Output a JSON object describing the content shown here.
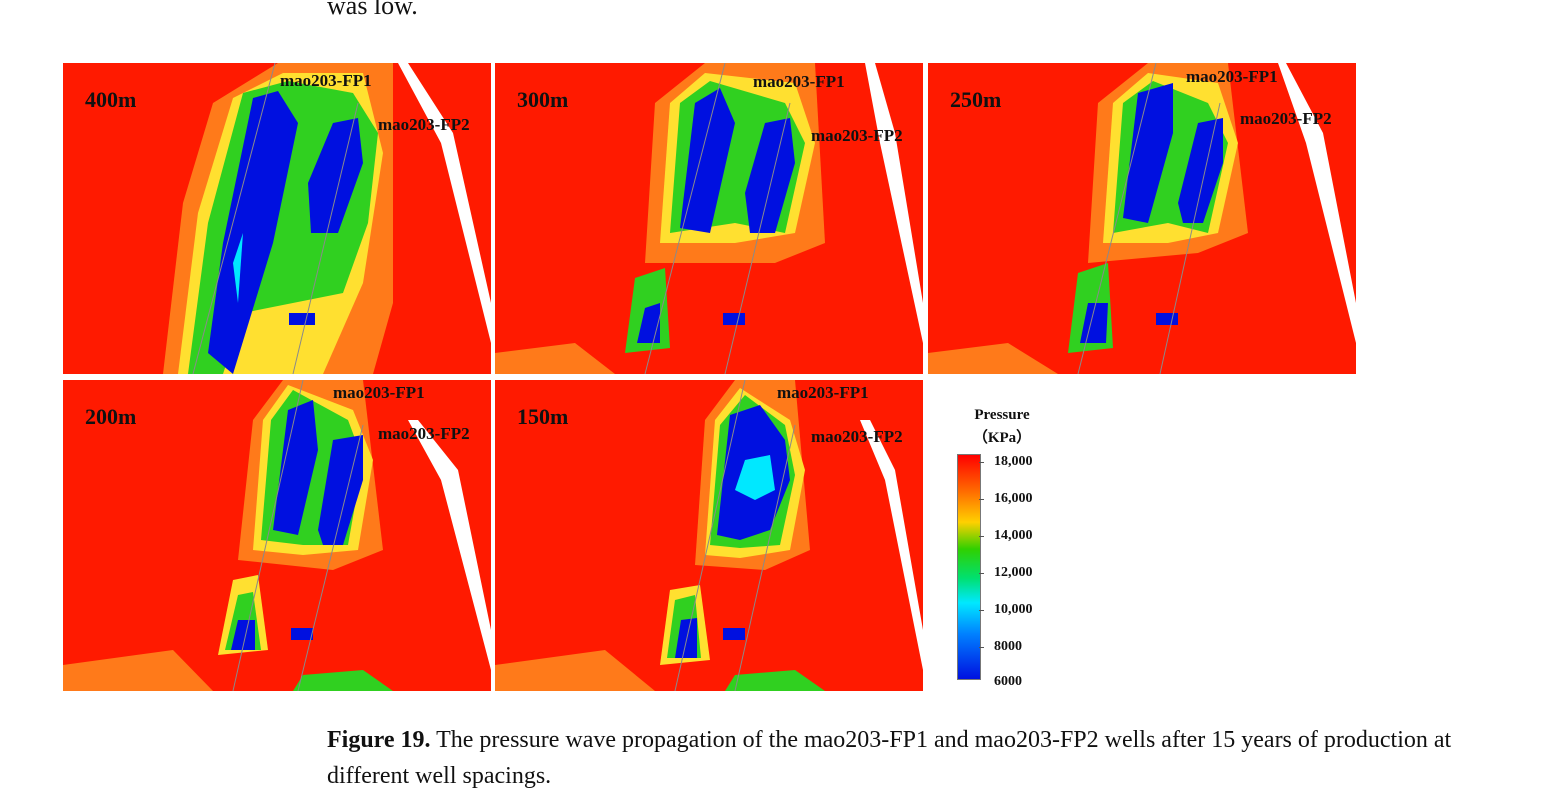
{
  "top_text": "was low.",
  "panels": [
    {
      "spacing": "400m",
      "fp1": "mao203-FP1",
      "fp2": "mao203-FP2"
    },
    {
      "spacing": "300m",
      "fp1": "mao203-FP1",
      "fp2": "mao203-FP2"
    },
    {
      "spacing": "250m",
      "fp1": "mao203-FP1",
      "fp2": "mao203-FP2"
    },
    {
      "spacing": "200m",
      "fp1": "mao203-FP1",
      "fp2": "mao203-FP2"
    },
    {
      "spacing": "150m",
      "fp1": "mao203-FP1",
      "fp2": "mao203-FP2"
    }
  ],
  "legend": {
    "title": "Pressure",
    "unit": "（KPa）",
    "ticks": [
      "18,000",
      "16,000",
      "14,000",
      "12,000",
      "10,000",
      "8000",
      "6000"
    ]
  },
  "caption": {
    "label": "Figure 19.",
    "text": " The pressure wave propagation of the mao203-FP1 and mao203-FP2 wells after 15 years of production at different well spacings."
  }
}
